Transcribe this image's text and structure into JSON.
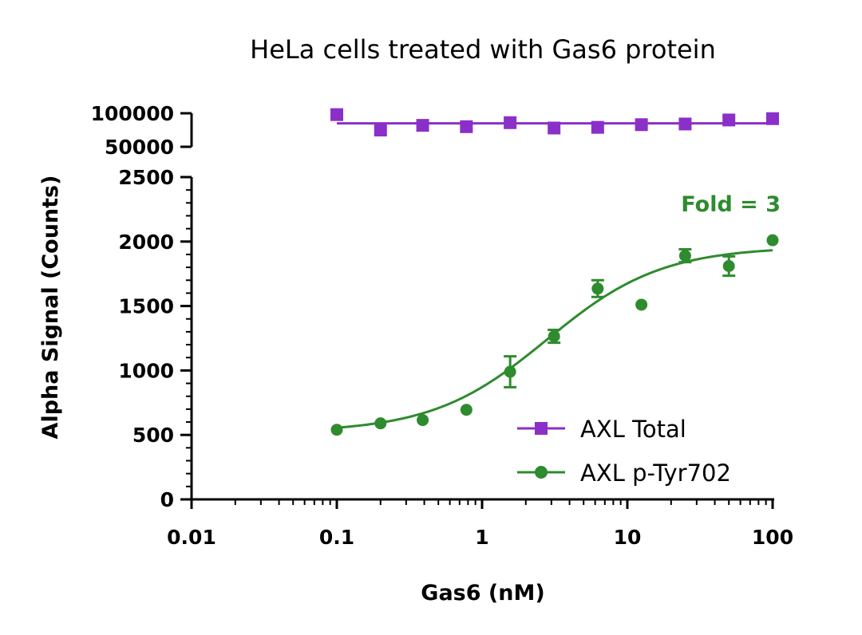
{
  "chart_data": {
    "type": "scatter",
    "title": "HeLa cells treated with Gas6 protein",
    "xlabel": "Gas6 (nM)",
    "ylabel": "Alpha Signal (Counts)",
    "x_scale": "log",
    "xlim": [
      0.01,
      100
    ],
    "x_ticks": [
      0.01,
      0.1,
      1,
      10,
      100
    ],
    "x_tick_labels": [
      "0.01",
      "0.1",
      "1",
      "10",
      "100"
    ],
    "y_axis_break": true,
    "ylim_lower": [
      0,
      2500
    ],
    "y_ticks_lower": [
      0,
      500,
      1000,
      1500,
      2000,
      2500
    ],
    "y_tick_labels_lower": [
      "0",
      "500",
      "1000",
      "1500",
      "2000",
      "2500"
    ],
    "ylim_upper": [
      50000,
      100000
    ],
    "y_ticks_upper": [
      50000,
      100000
    ],
    "y_tick_labels_upper": [
      "50000",
      "100000"
    ],
    "legend_position": "lower-right",
    "series": [
      {
        "name": "AXL Total",
        "color": "#8b2fc9",
        "marker": "square",
        "x": [
          0.1,
          0.2,
          0.39,
          0.78,
          1.56,
          3.13,
          6.25,
          12.5,
          25,
          50,
          100
        ],
        "y": [
          98000,
          75000,
          82000,
          80000,
          86000,
          78000,
          79000,
          83000,
          84000,
          90000,
          92000
        ],
        "fit": {
          "type": "constant",
          "value": 85000
        }
      },
      {
        "name": "AXL p-Tyr702",
        "color": "#2e8b2e",
        "marker": "circle",
        "x": [
          0.1,
          0.2,
          0.39,
          0.78,
          1.56,
          3.13,
          6.25,
          12.5,
          25,
          50,
          100
        ],
        "y": [
          540,
          590,
          615,
          695,
          990,
          1265,
          1635,
          1510,
          1890,
          1810,
          2010
        ],
        "error": [
          0,
          0,
          0,
          0,
          120,
          50,
          65,
          0,
          50,
          75,
          0
        ],
        "fit": {
          "type": "sigmoid",
          "bottom": 520,
          "top": 1960,
          "ec50": 2.8,
          "hill": 1.1
        }
      }
    ],
    "annotations": [
      {
        "text": "Fold = 3",
        "color": "#2e8b2e"
      }
    ]
  }
}
